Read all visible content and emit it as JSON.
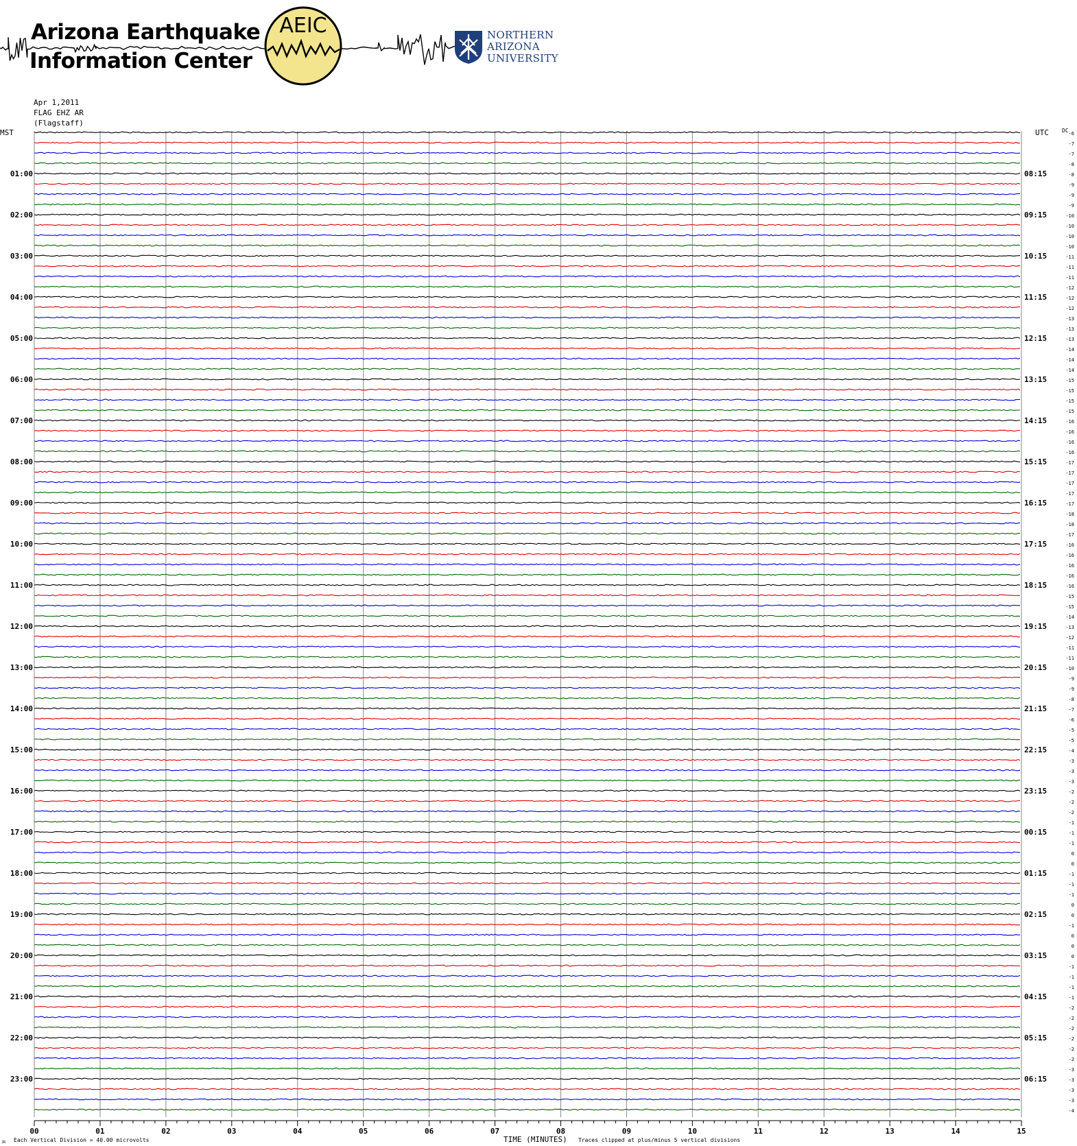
{
  "header": {
    "org_line1": "Arizona Earthquake",
    "org_line2": "Information Center",
    "badge_text": "AEIC",
    "university_line1": "NORTHERN",
    "university_line2": "ARIZONA",
    "university_line3": "UNIVERSITY"
  },
  "station": {
    "date": "Apr 1,2011",
    "channel": "FLAG EHZ AR",
    "location": "(Flagstaff)"
  },
  "chart_data": {
    "type": "line",
    "title": "",
    "left_axis_label": "MST",
    "right_axis_label": "UTC",
    "dc_label": "DC",
    "xlabel": "TIME (MINUTES)",
    "x_ticks": [
      "00",
      "01",
      "02",
      "03",
      "04",
      "05",
      "06",
      "07",
      "08",
      "09",
      "10",
      "11",
      "12",
      "13",
      "14",
      "15"
    ],
    "xlim": [
      0,
      15
    ],
    "rows_per_hour": 4,
    "trace_colors": [
      "#000000",
      "#e00000",
      "#0000dd",
      "#006600"
    ],
    "hour_labels_mst": [
      "",
      "01:00",
      "02:00",
      "03:00",
      "04:00",
      "05:00",
      "06:00",
      "07:00",
      "08:00",
      "09:00",
      "10:00",
      "11:00",
      "12:00",
      "13:00",
      "14:00",
      "15:00",
      "16:00",
      "17:00",
      "18:00",
      "19:00",
      "20:00",
      "21:00",
      "22:00",
      "23:00"
    ],
    "hour_labels_utc": [
      "",
      "08:15",
      "09:15",
      "10:15",
      "11:15",
      "12:15",
      "13:15",
      "14:15",
      "15:15",
      "16:15",
      "17:15",
      "18:15",
      "19:15",
      "20:15",
      "21:15",
      "22:15",
      "23:15",
      "00:15",
      "01:15",
      "02:15",
      "03:15",
      "04:15",
      "05:15",
      "06:15"
    ],
    "dc_offsets": [
      -6,
      -7,
      -7,
      -8,
      -8,
      -9,
      -9,
      -9,
      -10,
      -10,
      -10,
      -10,
      -11,
      -11,
      -11,
      -12,
      -12,
      -12,
      -13,
      -13,
      -13,
      -14,
      -14,
      -14,
      -15,
      -15,
      -15,
      -15,
      -16,
      -16,
      -16,
      -16,
      -17,
      -17,
      -17,
      -17,
      -17,
      -18,
      -18,
      -17,
      -16,
      -16,
      -16,
      -16,
      -16,
      -15,
      -15,
      -14,
      -13,
      -12,
      -11,
      -11,
      -10,
      -9,
      -9,
      -8,
      -7,
      -6,
      -5,
      -5,
      -4,
      -3,
      -3,
      -3,
      -2,
      -2,
      -2,
      -1,
      -1,
      -1,
      0,
      0,
      -1,
      -1,
      -1,
      0,
      0,
      -1,
      0,
      0,
      0,
      -1,
      -1,
      -1,
      -1,
      -2,
      -2,
      -2,
      -2,
      -2,
      -2,
      -3,
      -3,
      -3,
      -3,
      -4
    ],
    "footer_left": "Each Vertical Division =   40.00 microvolts",
    "footer_right": "Traces clipped at plus/minus 5 vertical divisions",
    "footer_corner": "JR"
  }
}
